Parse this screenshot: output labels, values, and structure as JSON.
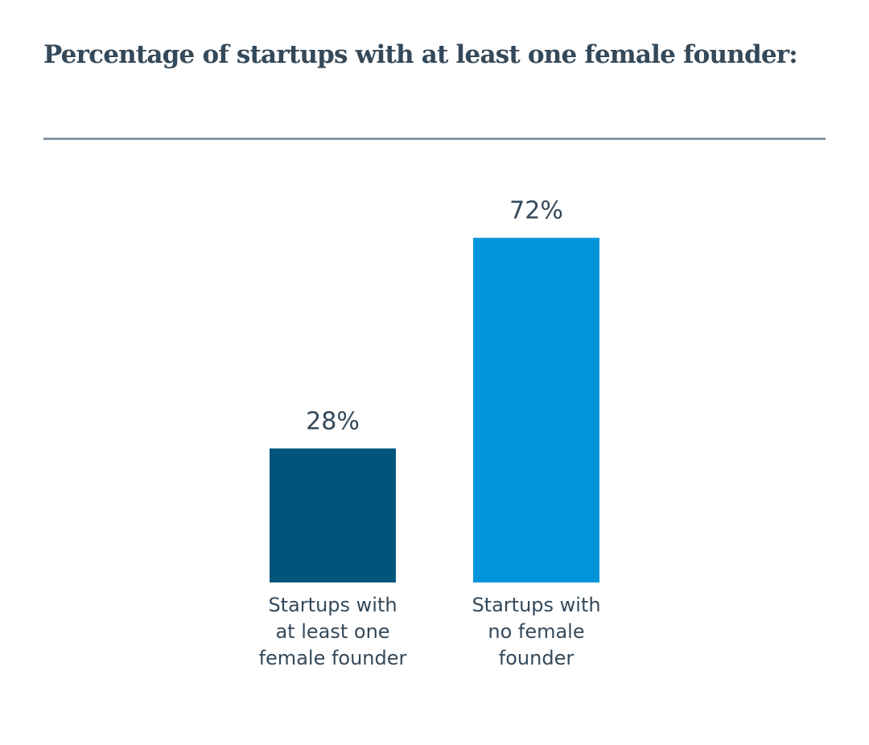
{
  "chart_data": {
    "type": "bar",
    "title": "Percentage of startups with at least one female founder:",
    "categories": [
      [
        "Startups with",
        "at least one",
        "female founder"
      ],
      [
        "Startups with",
        "no female",
        "founder"
      ]
    ],
    "values": [
      28,
      72
    ],
    "value_labels": [
      "28%",
      "72%"
    ],
    "colors": [
      "#02557a",
      "#0095da"
    ],
    "ylim": [
      0,
      100
    ],
    "grid": false,
    "xlabel": "",
    "ylabel": ""
  }
}
